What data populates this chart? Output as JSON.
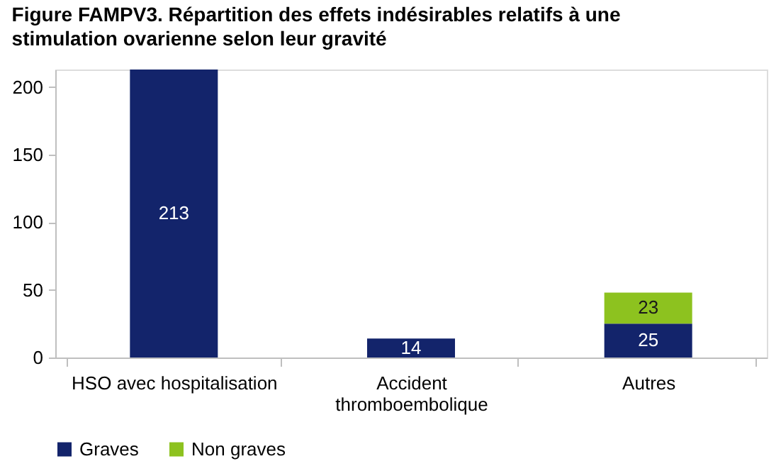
{
  "chart_data": {
    "type": "bar",
    "title": "Figure FAMPV3. Répartition des effets indésirables relatifs à une stimulation ovarienne selon leur gravité",
    "categories": [
      "HSO avec hospitalisation",
      "Accident thromboembolique",
      "Autres"
    ],
    "series": [
      {
        "name": "Graves",
        "color": "#13246b",
        "values": [
          213,
          14,
          25
        ]
      },
      {
        "name": "Non graves",
        "color": "#8dc21f",
        "values": [
          null,
          null,
          23
        ]
      }
    ],
    "stacked": true,
    "data_labels": true,
    "ylim": [
      0,
      213
    ],
    "yticks": [
      0,
      50,
      100,
      150,
      200
    ],
    "grid": false,
    "legend": "bottom"
  }
}
